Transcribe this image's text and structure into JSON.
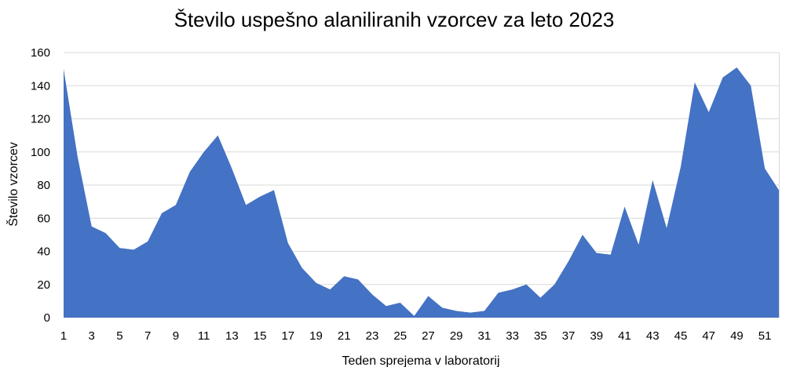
{
  "chart_data": {
    "type": "area",
    "title": "Število uspešno alaniliranih vzorcev za leto 2023",
    "xlabel": "Teden sprejema v laboratorij",
    "ylabel": "Število vzorcev",
    "ylim": [
      0,
      160
    ],
    "y_ticks": [
      0,
      20,
      40,
      60,
      80,
      100,
      120,
      140,
      160
    ],
    "x": [
      1,
      2,
      3,
      4,
      5,
      6,
      7,
      8,
      9,
      10,
      11,
      12,
      13,
      14,
      15,
      16,
      17,
      18,
      19,
      20,
      21,
      22,
      23,
      24,
      25,
      26,
      27,
      28,
      29,
      30,
      31,
      32,
      33,
      34,
      35,
      36,
      37,
      38,
      39,
      40,
      41,
      42,
      43,
      44,
      45,
      46,
      47,
      48,
      49,
      50,
      51,
      52
    ],
    "x_tick_labels": [
      1,
      3,
      5,
      7,
      9,
      11,
      13,
      15,
      17,
      19,
      21,
      23,
      25,
      27,
      29,
      31,
      33,
      35,
      37,
      39,
      41,
      43,
      45,
      47,
      49,
      51
    ],
    "series": [
      {
        "values": [
          150,
          97,
          55,
          51,
          42,
          41,
          46,
          63,
          68,
          88,
          100,
          110,
          90,
          68,
          73,
          77,
          45,
          30,
          21,
          17,
          25,
          23,
          14,
          7,
          9,
          1,
          13,
          6,
          4,
          3,
          4,
          15,
          17,
          20,
          12,
          20,
          34,
          50,
          39,
          38,
          67,
          44,
          83,
          54,
          91,
          142,
          124,
          145,
          151,
          140,
          90,
          77
        ]
      }
    ],
    "grid": true,
    "legend": "none",
    "colors": {
      "area": "#4472c4",
      "grid": "#d9d9d9",
      "text": "#000000"
    }
  }
}
